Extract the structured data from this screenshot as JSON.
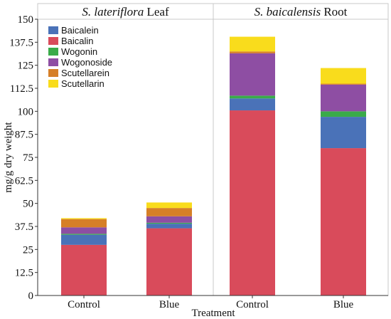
{
  "chart_data": {
    "type": "bar",
    "stacked": true,
    "panels": [
      {
        "title_italic": "S. lateriflora",
        "title_rest": " Leaf",
        "categories": [
          "Control",
          "Blue"
        ]
      },
      {
        "title_italic": "S. baicalensis",
        "title_rest": " Root",
        "categories": [
          "Control",
          "Blue"
        ]
      }
    ],
    "xlabel": "Treatment",
    "ylabel": "mg/g dry weight",
    "ylim": [
      0,
      150
    ],
    "yticks": [
      "0",
      "12.5",
      "25",
      "37.5",
      "50",
      "62.5",
      "75",
      "87.5",
      "100",
      "112.5",
      "125",
      "137.5",
      "150"
    ],
    "stack_order": [
      "Baicalin",
      "Baicalein",
      "Wogonin",
      "Wogonoside",
      "Scutellarein",
      "Scutellarin"
    ],
    "legend_order": [
      "Baicalein",
      "Baicalin",
      "Wogonin",
      "Wogonoside",
      "Scutellarein",
      "Scutellarin"
    ],
    "legend_position": "top-left",
    "grid": false,
    "series": [
      {
        "name": "Baicalin",
        "color": "#d94b5b",
        "values": [
          27.5,
          36.5,
          100.5,
          80.0
        ]
      },
      {
        "name": "Baicalein",
        "color": "#4a72b8",
        "values": [
          5.5,
          2.5,
          6.5,
          17.0
        ]
      },
      {
        "name": "Wogonin",
        "color": "#3aab49",
        "values": [
          0.5,
          0.5,
          1.5,
          3.0
        ]
      },
      {
        "name": "Wogonoside",
        "color": "#8e4ea3",
        "values": [
          3.5,
          3.5,
          23.0,
          14.5
        ]
      },
      {
        "name": "Scutellarein",
        "color": "#d67f27",
        "values": [
          4.5,
          4.5,
          1.0,
          0.5
        ]
      },
      {
        "name": "Scutellarin",
        "color": "#f9dc1c",
        "values": [
          0.5,
          3.0,
          8.0,
          8.5
        ]
      }
    ]
  }
}
